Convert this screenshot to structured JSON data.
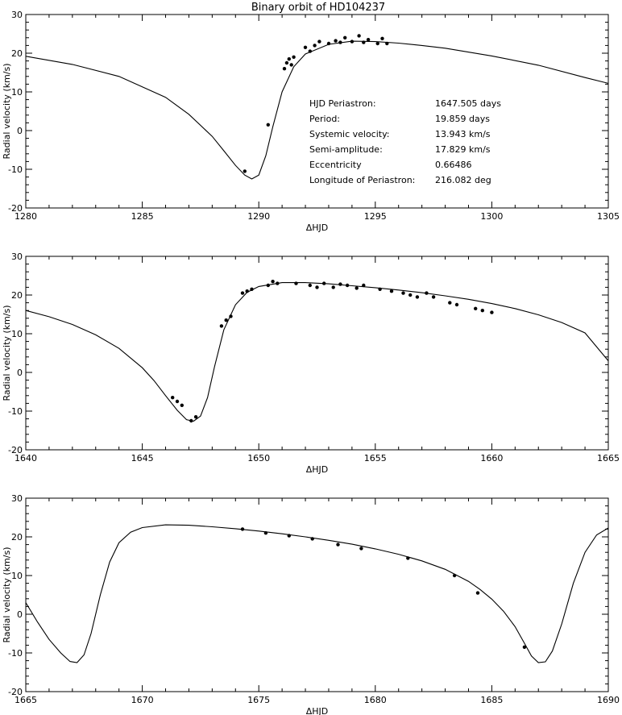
{
  "title": "Binary orbit of HD104237",
  "info_labels": [
    "HJD Periastron:",
    "Period:",
    "Systemic velocity:",
    "Semi-amplitude:",
    "Eccentricity",
    "Longitude  of Periastron:"
  ],
  "info_values": [
    "1647.505 days",
    "19.859 days",
    "13.943 km/s",
    "17.829 km/s",
    "0.66486",
    "216.082 deg"
  ],
  "chart_data": [
    {
      "type": "scatter",
      "xlabel": "ΔHJD",
      "ylabel": "Radial velocity (km/s)",
      "xlim": [
        1280,
        1305
      ],
      "ylim": [
        -20,
        30
      ],
      "xticks": [
        1280,
        1285,
        1290,
        1295,
        1300,
        1305
      ],
      "yticks": [
        -20,
        -10,
        0,
        10,
        20,
        30
      ],
      "series": [
        {
          "role": "orbit model curve",
          "x": [
            1280.0,
            1282.0,
            1284.0,
            1286.0,
            1287.0,
            1288.0,
            1288.5,
            1289.0,
            1289.4,
            1289.7,
            1290.0,
            1290.3,
            1290.6,
            1291.0,
            1291.5,
            1292.0,
            1293.0,
            1294.0,
            1295.0,
            1296.0,
            1297.0,
            1298.0,
            1300.0,
            1302.0,
            1304.0,
            1305.0
          ],
          "y": [
            19.2,
            17.1,
            14.0,
            8.6,
            4.2,
            -1.5,
            -5.2,
            -9.0,
            -11.5,
            -12.5,
            -11.5,
            -6.5,
            1.0,
            10.0,
            16.5,
            19.8,
            22.3,
            23.1,
            23.0,
            22.6,
            22.0,
            21.3,
            19.3,
            16.9,
            13.7,
            12.2
          ]
        },
        {
          "role": "measurements",
          "x": [
            1289.4,
            1290.4,
            1291.1,
            1291.2,
            1291.3,
            1291.4,
            1291.5,
            1292.0,
            1292.2,
            1292.4,
            1292.6,
            1293.0,
            1293.3,
            1293.5,
            1293.7,
            1294.0,
            1294.3,
            1294.5,
            1294.7,
            1295.1,
            1295.3,
            1295.5
          ],
          "y": [
            -10.5,
            1.5,
            16.0,
            17.5,
            18.5,
            17.0,
            19.0,
            21.5,
            20.5,
            22.0,
            23.0,
            22.5,
            23.2,
            22.8,
            24.0,
            23.0,
            24.5,
            22.8,
            23.5,
            22.5,
            23.8,
            22.5
          ]
        }
      ]
    },
    {
      "type": "scatter",
      "xlabel": "ΔHJD",
      "ylabel": "Radial velocity (km/s)",
      "xlim": [
        1640,
        1665
      ],
      "ylim": [
        -20,
        30
      ],
      "xticks": [
        1640,
        1645,
        1650,
        1655,
        1660,
        1665
      ],
      "yticks": [
        -20,
        -10,
        0,
        10,
        20,
        30
      ],
      "series": [
        {
          "role": "orbit model curve",
          "x": [
            1640.0,
            1641.0,
            1642.0,
            1643.0,
            1644.0,
            1645.0,
            1645.5,
            1646.0,
            1646.5,
            1646.9,
            1647.2,
            1647.5,
            1647.8,
            1648.1,
            1648.5,
            1649.0,
            1649.5,
            1650.0,
            1651.0,
            1652.0,
            1653.0,
            1654.0,
            1655.0,
            1656.0,
            1657.0,
            1658.0,
            1659.0,
            1660.0,
            1661.0,
            1662.0,
            1663.0,
            1664.0,
            1665.0
          ],
          "y": [
            16.0,
            14.4,
            12.4,
            9.7,
            6.2,
            1.2,
            -2.1,
            -6.0,
            -9.8,
            -12.2,
            -12.6,
            -11.3,
            -6.5,
            1.5,
            11.0,
            17.5,
            20.7,
            22.2,
            23.2,
            23.2,
            22.9,
            22.4,
            21.9,
            21.3,
            20.6,
            19.8,
            18.9,
            17.8,
            16.5,
            14.9,
            12.9,
            10.2,
            3.0
          ]
        },
        {
          "role": "measurements",
          "x": [
            1646.3,
            1646.5,
            1646.7,
            1647.1,
            1647.3,
            1648.4,
            1648.6,
            1648.8,
            1649.3,
            1649.5,
            1649.7,
            1650.4,
            1650.6,
            1650.8,
            1651.6,
            1652.2,
            1652.5,
            1652.8,
            1653.2,
            1653.5,
            1653.8,
            1654.2,
            1654.5,
            1655.2,
            1655.7,
            1656.2,
            1656.5,
            1656.8,
            1657.2,
            1657.5,
            1658.2,
            1658.5,
            1659.3,
            1659.6,
            1660.0
          ],
          "y": [
            -6.5,
            -7.5,
            -8.5,
            -12.5,
            -11.5,
            12.0,
            13.5,
            14.5,
            20.5,
            21.0,
            21.5,
            22.5,
            23.5,
            23.0,
            23.0,
            22.5,
            22.0,
            23.0,
            22.0,
            22.8,
            22.5,
            21.8,
            22.5,
            21.5,
            21.0,
            20.5,
            20.0,
            19.5,
            20.5,
            19.5,
            18.0,
            17.5,
            16.5,
            16.0,
            15.5
          ]
        }
      ]
    },
    {
      "type": "scatter",
      "xlabel": "ΔHJD",
      "ylabel": "Radial velocity (km/s)",
      "xlim": [
        1665,
        1690
      ],
      "ylim": [
        -20,
        30
      ],
      "xticks": [
        1665,
        1670,
        1675,
        1680,
        1685,
        1690
      ],
      "yticks": [
        -20,
        -10,
        0,
        10,
        20,
        30
      ],
      "series": [
        {
          "role": "orbit model curve",
          "x": [
            1665.0,
            1665.5,
            1666.0,
            1666.5,
            1666.9,
            1667.2,
            1667.5,
            1667.8,
            1668.2,
            1668.6,
            1669.0,
            1669.5,
            1670.0,
            1671.0,
            1672.0,
            1673.0,
            1674.0,
            1675.0,
            1676.0,
            1677.0,
            1678.0,
            1679.0,
            1680.0,
            1681.0,
            1682.0,
            1683.0,
            1684.0,
            1684.5,
            1685.0,
            1685.5,
            1686.0,
            1686.4,
            1686.7,
            1687.0,
            1687.3,
            1687.6,
            1688.0,
            1688.5,
            1689.0,
            1689.5,
            1690.0
          ],
          "y": [
            3.0,
            -2.0,
            -6.5,
            -10.0,
            -12.2,
            -12.5,
            -10.5,
            -5.0,
            5.0,
            13.5,
            18.5,
            21.2,
            22.4,
            23.1,
            23.0,
            22.6,
            22.1,
            21.5,
            20.8,
            20.0,
            19.1,
            18.1,
            16.9,
            15.5,
            13.8,
            11.6,
            8.5,
            6.4,
            3.9,
            0.8,
            -3.2,
            -7.5,
            -10.8,
            -12.5,
            -12.3,
            -9.5,
            -2.5,
            8.0,
            16.0,
            20.5,
            22.3
          ]
        },
        {
          "role": "measurements",
          "x": [
            1674.3,
            1675.3,
            1676.3,
            1677.3,
            1678.4,
            1679.4,
            1681.4,
            1683.4,
            1684.4,
            1686.4
          ],
          "y": [
            22.0,
            21.0,
            20.3,
            19.5,
            18.0,
            17.0,
            14.5,
            10.0,
            5.5,
            -8.5
          ]
        }
      ]
    }
  ]
}
